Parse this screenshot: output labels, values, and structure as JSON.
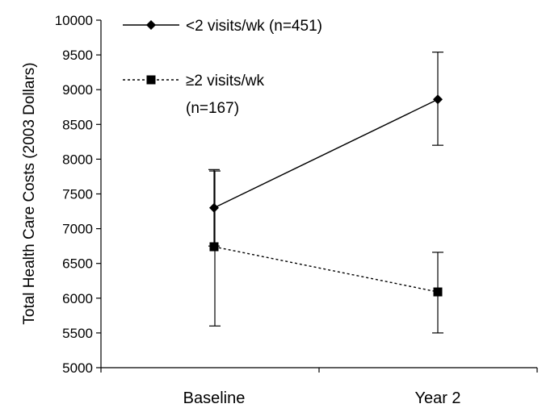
{
  "chart_data": {
    "type": "line",
    "categories": [
      "Baseline",
      "Year 2"
    ],
    "ylabel": "Total Health Care Costs (2003 Dollars)",
    "xlabel": "",
    "ylim": [
      5000,
      10000
    ],
    "yticks": [
      5000,
      5500,
      6000,
      6500,
      7000,
      7500,
      8000,
      8500,
      9000,
      9500,
      10000
    ],
    "grid": false,
    "legend_position": "top-left",
    "series": [
      {
        "name": "<2 visits/wk (n=451)",
        "legend_lines": [
          "<2 visits/wk (n=451)"
        ],
        "marker": "diamond",
        "line_style": "solid",
        "values": [
          7300,
          8860
        ],
        "error_low": [
          6750,
          8200
        ],
        "error_high": [
          7850,
          9540
        ]
      },
      {
        "name": "≥2 visits/wk (n=167)",
        "legend_lines": [
          "≥2 visits/wk",
          "(n=167)"
        ],
        "marker": "square",
        "line_style": "dotted",
        "values": [
          6740,
          6090
        ],
        "error_low": [
          5600,
          5500
        ],
        "error_high": [
          7830,
          6660
        ]
      }
    ],
    "colors": {
      "series": "#000000",
      "axis": "#000000"
    }
  }
}
